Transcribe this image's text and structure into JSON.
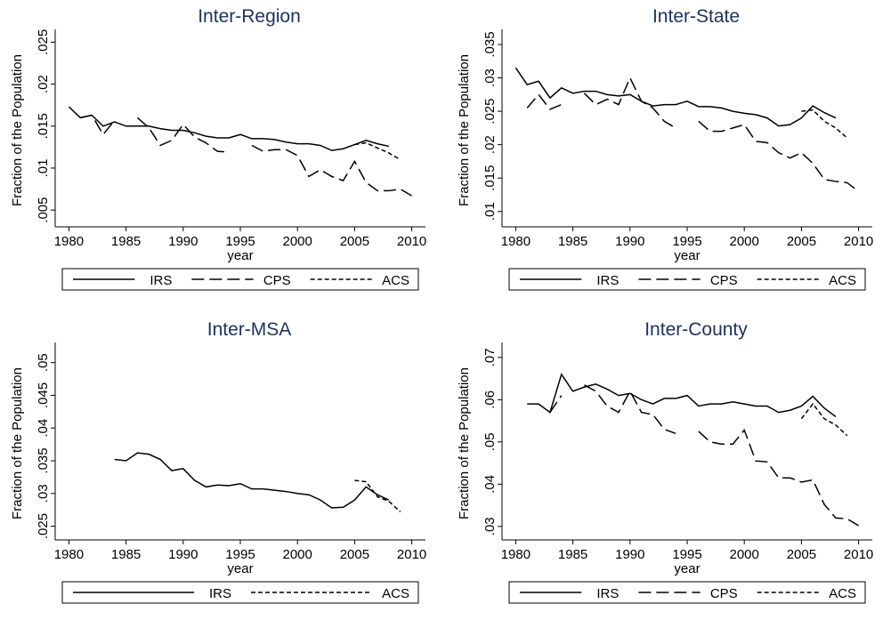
{
  "chart_data": [
    {
      "type": "line",
      "title": "Inter-Region",
      "ylabel": "Fraction of the Population",
      "xlabel": "year",
      "x": [
        1980,
        1981,
        1982,
        1983,
        1984,
        1985,
        1986,
        1987,
        1988,
        1989,
        1990,
        1991,
        1992,
        1993,
        1994,
        1995,
        1996,
        1997,
        1998,
        1999,
        2000,
        2001,
        2002,
        2003,
        2004,
        2005,
        2006,
        2007,
        2008,
        2009,
        2010
      ],
      "xlim": [
        1978.8,
        2011.2
      ],
      "xticks": [
        1980,
        1985,
        1990,
        1995,
        2000,
        2005,
        2010
      ],
      "ylim": [
        0.003,
        0.026
      ],
      "yticks": [
        {
          "value": 0.005,
          "label": ".005"
        },
        {
          "value": 0.01,
          "label": ".01"
        },
        {
          "value": 0.015,
          "label": ".015"
        },
        {
          "value": 0.02,
          "label": ".02"
        },
        {
          "value": 0.025,
          "label": ".025"
        }
      ],
      "series": [
        {
          "name": "IRS",
          "color": "#000000",
          "dash": "solid",
          "values": [
            0.0173,
            0.016,
            0.0163,
            0.015,
            0.0155,
            0.015,
            0.015,
            0.015,
            0.0147,
            0.0145,
            0.0145,
            0.0142,
            0.0138,
            0.0136,
            0.0136,
            0.014,
            0.0135,
            0.0135,
            0.0134,
            0.0131,
            0.0129,
            0.0129,
            0.0127,
            0.0121,
            0.0123,
            0.0128,
            0.0133,
            0.0129,
            0.0126,
            null,
            null
          ]
        },
        {
          "name": "CPS",
          "color": "#000000",
          "dash": "long",
          "values": [
            null,
            0.016,
            0.0163,
            0.014,
            0.0157,
            null,
            0.016,
            0.0148,
            0.0127,
            0.0133,
            0.0152,
            0.0137,
            0.013,
            0.012,
            0.0119,
            null,
            0.0127,
            0.012,
            0.0122,
            0.0122,
            0.0115,
            0.009,
            0.0098,
            0.009,
            0.0085,
            0.0108,
            0.0083,
            0.0073,
            0.0073,
            0.0075,
            0.0067
          ]
        },
        {
          "name": "ACS",
          "color": "#000000",
          "dash": "short",
          "values": [
            null,
            null,
            null,
            null,
            null,
            null,
            null,
            null,
            null,
            null,
            null,
            null,
            null,
            null,
            null,
            null,
            null,
            null,
            null,
            null,
            null,
            null,
            null,
            null,
            null,
            0.0128,
            0.013,
            0.0124,
            0.0118,
            0.011,
            null
          ]
        }
      ]
    },
    {
      "type": "line",
      "title": "Inter-State",
      "ylabel": "Fraction of the Population",
      "xlabel": "year",
      "x": [
        1980,
        1981,
        1982,
        1983,
        1984,
        1985,
        1986,
        1987,
        1988,
        1989,
        1990,
        1991,
        1992,
        1993,
        1994,
        1995,
        1996,
        1997,
        1998,
        1999,
        2000,
        2001,
        2002,
        2003,
        2004,
        2005,
        2006,
        2007,
        2008,
        2009,
        2010
      ],
      "xlim": [
        1978.8,
        2011.2
      ],
      "xticks": [
        1980,
        1985,
        1990,
        1995,
        2000,
        2005,
        2010
      ],
      "ylim": [
        0.0077,
        0.0366
      ],
      "yticks": [
        {
          "value": 0.01,
          "label": ".01"
        },
        {
          "value": 0.015,
          "label": ".015"
        },
        {
          "value": 0.02,
          "label": ".02"
        },
        {
          "value": 0.025,
          "label": ".025"
        },
        {
          "value": 0.03,
          "label": ".03"
        },
        {
          "value": 0.035,
          "label": ".035"
        }
      ],
      "series": [
        {
          "name": "IRS",
          "color": "#000000",
          "dash": "solid",
          "values": [
            0.0315,
            0.029,
            0.0295,
            0.027,
            0.0285,
            0.0277,
            0.028,
            0.028,
            0.0275,
            0.0273,
            0.0275,
            0.0265,
            0.0258,
            0.026,
            0.026,
            0.0265,
            0.0257,
            0.0257,
            0.0255,
            0.025,
            0.0247,
            0.0245,
            0.024,
            0.0228,
            0.023,
            0.024,
            0.0258,
            0.0248,
            0.024,
            null,
            null
          ]
        },
        {
          "name": "CPS",
          "color": "#000000",
          "dash": "long",
          "values": [
            null,
            0.0255,
            0.0275,
            0.0253,
            0.026,
            null,
            0.0277,
            0.026,
            0.0268,
            0.026,
            0.03,
            0.0265,
            0.0255,
            0.0235,
            0.0225,
            null,
            0.0235,
            0.022,
            0.022,
            0.0225,
            0.023,
            0.0205,
            0.0203,
            0.0188,
            0.018,
            0.0188,
            0.0172,
            0.0148,
            0.0145,
            0.0143,
            0.013
          ]
        },
        {
          "name": "ACS",
          "color": "#000000",
          "dash": "short",
          "values": [
            null,
            null,
            null,
            null,
            null,
            null,
            null,
            null,
            null,
            null,
            null,
            null,
            null,
            null,
            null,
            null,
            null,
            null,
            null,
            null,
            null,
            null,
            null,
            null,
            null,
            0.025,
            0.0252,
            0.0235,
            0.0225,
            0.021,
            null
          ]
        }
      ]
    },
    {
      "type": "line",
      "title": "Inter-MSA",
      "ylabel": "Fraction of the Population",
      "xlabel": "year",
      "x": [
        1980,
        1981,
        1982,
        1983,
        1984,
        1985,
        1986,
        1987,
        1988,
        1989,
        1990,
        1991,
        1992,
        1993,
        1994,
        1995,
        1996,
        1997,
        1998,
        1999,
        2000,
        2001,
        2002,
        2003,
        2004,
        2005,
        2006,
        2007,
        2008,
        2009,
        2010
      ],
      "xlim": [
        1978.8,
        2011.2
      ],
      "xticks": [
        1980,
        1985,
        1990,
        1995,
        2000,
        2005,
        2010
      ],
      "ylim": [
        0.0229,
        0.0524
      ],
      "yticks": [
        {
          "value": 0.025,
          "label": ".025"
        },
        {
          "value": 0.03,
          "label": ".03"
        },
        {
          "value": 0.035,
          "label": ".035"
        },
        {
          "value": 0.04,
          "label": ".04"
        },
        {
          "value": 0.045,
          "label": ".045"
        },
        {
          "value": 0.05,
          "label": ".05"
        }
      ],
      "series": [
        {
          "name": "IRS",
          "color": "#000000",
          "dash": "solid",
          "values": [
            null,
            null,
            null,
            null,
            0.0352,
            0.035,
            0.0362,
            0.036,
            0.0352,
            0.0335,
            0.0338,
            0.032,
            0.031,
            0.0313,
            0.0312,
            0.0315,
            0.0307,
            0.0307,
            0.0305,
            0.0303,
            0.03,
            0.0298,
            0.029,
            0.0278,
            0.0279,
            0.029,
            0.031,
            0.0298,
            0.029,
            null,
            null
          ]
        },
        {
          "name": "ACS",
          "color": "#000000",
          "dash": "short",
          "values": [
            null,
            null,
            null,
            null,
            null,
            null,
            null,
            null,
            null,
            null,
            null,
            null,
            null,
            null,
            null,
            null,
            null,
            null,
            null,
            null,
            null,
            null,
            null,
            null,
            null,
            0.032,
            0.0318,
            0.0295,
            0.0288,
            0.0272,
            null
          ]
        }
      ]
    },
    {
      "type": "line",
      "title": "Inter-County",
      "ylabel": "Fraction of the Population",
      "xlabel": "year",
      "x": [
        1980,
        1981,
        1982,
        1983,
        1984,
        1985,
        1986,
        1987,
        1988,
        1989,
        1990,
        1991,
        1992,
        1993,
        1994,
        1995,
        1996,
        1997,
        1998,
        1999,
        2000,
        2001,
        2002,
        2003,
        2004,
        2005,
        2006,
        2007,
        2008,
        2009,
        2010
      ],
      "xlim": [
        1978.8,
        2011.2
      ],
      "xticks": [
        1980,
        1985,
        1990,
        1995,
        2000,
        2005,
        2010
      ],
      "ylim": [
        0.0268,
        0.0725
      ],
      "yticks": [
        {
          "value": 0.03,
          "label": ".03"
        },
        {
          "value": 0.04,
          "label": ".04"
        },
        {
          "value": 0.05,
          "label": ".05"
        },
        {
          "value": 0.06,
          "label": ".06"
        },
        {
          "value": 0.07,
          "label": ".07"
        }
      ],
      "series": [
        {
          "name": "IRS",
          "color": "#000000",
          "dash": "solid",
          "values": [
            null,
            0.059,
            0.059,
            0.057,
            0.066,
            0.062,
            0.063,
            0.0637,
            0.0625,
            0.061,
            0.0615,
            0.06,
            0.059,
            0.0603,
            0.0603,
            0.061,
            0.0585,
            0.059,
            0.059,
            0.0595,
            0.059,
            0.0585,
            0.0585,
            0.057,
            0.0575,
            0.0585,
            0.0608,
            0.058,
            0.056,
            null,
            null
          ]
        },
        {
          "name": "CPS",
          "color": "#000000",
          "dash": "long",
          "values": [
            null,
            null,
            null,
            0.057,
            0.061,
            null,
            0.0635,
            0.062,
            0.0585,
            0.057,
            0.062,
            0.057,
            0.0565,
            0.053,
            0.052,
            null,
            0.0525,
            0.05,
            0.0495,
            0.0495,
            0.0528,
            0.0455,
            0.0453,
            0.0415,
            0.0415,
            0.0405,
            0.041,
            0.0352,
            0.032,
            0.0318,
            0.0302
          ]
        },
        {
          "name": "ACS",
          "color": "#000000",
          "dash": "short",
          "values": [
            null,
            null,
            null,
            null,
            null,
            null,
            null,
            null,
            null,
            null,
            null,
            null,
            null,
            null,
            null,
            null,
            null,
            null,
            null,
            null,
            null,
            null,
            null,
            null,
            null,
            0.0555,
            0.059,
            0.0555,
            0.054,
            0.0515,
            null
          ]
        }
      ]
    }
  ]
}
